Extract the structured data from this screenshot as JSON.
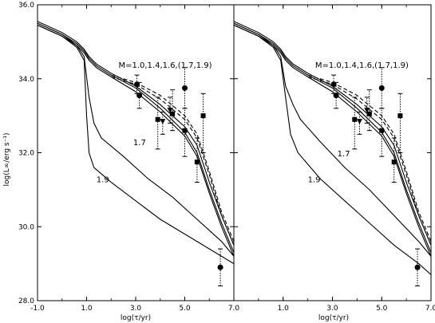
{
  "chart_data": [
    {
      "panel": "left",
      "type": "line",
      "xlabel": "log(τ/yr)",
      "ylabel": "log(L∞/erg s⁻¹)",
      "xlim": [
        -1.0,
        7.0
      ],
      "ylim": [
        28.0,
        36.0
      ],
      "xticks": [
        "-1.0",
        "1.0",
        "3.0",
        "5.0",
        "7.0"
      ],
      "yticks": [
        "28.0",
        "30.0",
        "32.0",
        "34.0",
        "36.0"
      ],
      "annotations": [
        {
          "text": "M=1.0,1.4,1.6,(1.7,1.9)",
          "x": 2.3,
          "y": 34.3
        },
        {
          "text": "1.7",
          "x": 2.9,
          "y": 32.2
        },
        {
          "text": "1.9",
          "x": 1.4,
          "y": 31.2
        }
      ],
      "series": [
        {
          "values": [
            [
              -1.0,
              35.55
            ],
            [
              0.0,
              35.25
            ],
            [
              0.6,
              35.0
            ],
            [
              0.9,
              34.8
            ],
            [
              1.1,
              34.6
            ],
            [
              1.4,
              34.4
            ],
            [
              2.0,
              34.15
            ],
            [
              3.0,
              33.8
            ],
            [
              4.0,
              33.3
            ],
            [
              5.0,
              32.7
            ],
            [
              5.5,
              32.2
            ],
            [
              6.0,
              31.2
            ],
            [
              6.5,
              30.3
            ],
            [
              7.0,
              29.5
            ]
          ],
          "style": "solid"
        },
        {
          "values": [
            [
              -1.0,
              35.5
            ],
            [
              0.0,
              35.2
            ],
            [
              0.6,
              34.95
            ],
            [
              0.9,
              34.75
            ],
            [
              1.1,
              34.55
            ],
            [
              1.4,
              34.35
            ],
            [
              2.0,
              34.1
            ],
            [
              3.0,
              33.75
            ],
            [
              4.0,
              33.2
            ],
            [
              5.0,
              32.55
            ],
            [
              5.5,
              32.0
            ],
            [
              6.0,
              31.0
            ],
            [
              6.5,
              30.1
            ],
            [
              7.0,
              29.3
            ]
          ],
          "style": "solid"
        },
        {
          "values": [
            [
              -1.0,
              35.45
            ],
            [
              0.0,
              35.15
            ],
            [
              0.6,
              34.9
            ],
            [
              0.9,
              34.7
            ],
            [
              1.1,
              34.5
            ],
            [
              1.4,
              34.3
            ],
            [
              2.0,
              34.05
            ],
            [
              3.0,
              33.65
            ],
            [
              4.0,
              33.1
            ],
            [
              5.0,
              32.45
            ],
            [
              5.5,
              31.9
            ],
            [
              6.0,
              30.9
            ],
            [
              6.5,
              30.0
            ],
            [
              7.0,
              29.2
            ]
          ],
          "style": "solid"
        },
        {
          "values": [
            [
              2.0,
              34.1
            ],
            [
              3.0,
              33.9
            ],
            [
              4.0,
              33.55
            ],
            [
              5.0,
              33.0
            ],
            [
              5.5,
              32.5
            ],
            [
              6.0,
              31.5
            ],
            [
              6.5,
              30.4
            ],
            [
              7.0,
              29.6
            ]
          ],
          "style": "dashed"
        },
        {
          "values": [
            [
              2.0,
              34.05
            ],
            [
              3.0,
              33.85
            ],
            [
              4.0,
              33.45
            ],
            [
              5.0,
              32.9
            ],
            [
              5.5,
              32.4
            ],
            [
              6.0,
              31.4
            ],
            [
              6.5,
              30.3
            ],
            [
              7.0,
              29.5
            ]
          ],
          "style": "dashed"
        },
        {
          "values": [
            [
              -1.0,
              35.5
            ],
            [
              0.0,
              35.2
            ],
            [
              0.6,
              34.9
            ],
            [
              0.9,
              34.6
            ],
            [
              1.1,
              33.5
            ],
            [
              1.3,
              32.8
            ],
            [
              1.6,
              32.4
            ],
            [
              2.5,
              31.9
            ],
            [
              3.5,
              31.3
            ],
            [
              4.5,
              30.8
            ],
            [
              5.5,
              30.2
            ],
            [
              6.5,
              29.6
            ],
            [
              7.0,
              29.2
            ]
          ],
          "style": "solid",
          "name": "1.7"
        },
        {
          "values": [
            [
              -1.0,
              35.45
            ],
            [
              0.0,
              35.15
            ],
            [
              0.6,
              34.85
            ],
            [
              0.9,
              34.5
            ],
            [
              1.0,
              33.0
            ],
            [
              1.1,
              32.0
            ],
            [
              1.3,
              31.6
            ],
            [
              2.0,
              31.2
            ],
            [
              3.0,
              30.7
            ],
            [
              4.0,
              30.2
            ],
            [
              5.0,
              29.8
            ],
            [
              6.0,
              29.4
            ],
            [
              7.0,
              29.0
            ]
          ],
          "style": "solid",
          "name": "1.9"
        }
      ],
      "observations": [
        {
          "marker": "circle",
          "x": 3.05,
          "y": 33.85,
          "yerr": [
            33.6,
            34.1
          ]
        },
        {
          "marker": "circle",
          "x": 3.15,
          "y": 33.55,
          "yerr": [
            33.2,
            33.9
          ]
        },
        {
          "marker": "square",
          "x": 3.9,
          "y": 32.9,
          "yerr": [
            32.1,
            33.5
          ]
        },
        {
          "marker": "triangle-down",
          "x": 4.1,
          "y": 32.85,
          "yerr": [
            32.5,
            33.1
          ]
        },
        {
          "marker": "triangle-down",
          "x": 4.4,
          "y": 33.15,
          "yerr": [
            32.8,
            33.5
          ]
        },
        {
          "marker": "square",
          "x": 4.5,
          "y": 33.05,
          "yerr": [
            32.6,
            33.7
          ]
        },
        {
          "marker": "circle",
          "x": 5.0,
          "y": 33.75,
          "yerr": [
            33.2,
            34.3
          ]
        },
        {
          "marker": "square",
          "x": 5.0,
          "y": 32.6,
          "yerr": [
            31.9,
            33.2
          ]
        },
        {
          "marker": "square",
          "x": 5.5,
          "y": 31.75,
          "yerr": [
            31.2,
            32.4
          ]
        },
        {
          "marker": "square",
          "x": 5.75,
          "y": 33.0,
          "yerr": [
            32.0,
            33.6
          ]
        },
        {
          "marker": "circle",
          "x": 6.45,
          "y": 28.9,
          "yerr": [
            28.4,
            29.4
          ]
        }
      ]
    },
    {
      "panel": "right",
      "type": "line",
      "xlabel": "log(τ/yr)",
      "ylabel": "",
      "xlim": [
        -1.0,
        7.0
      ],
      "ylim": [
        28.0,
        36.0
      ],
      "xticks": [
        "1.0",
        "3.0",
        "5.0",
        "7.0"
      ],
      "yticks": [],
      "annotations": [
        {
          "text": "M=1.0,1.4,1.6,(1.7,1.9)",
          "x": 2.3,
          "y": 34.3
        },
        {
          "text": "1.7",
          "x": 3.2,
          "y": 31.9
        },
        {
          "text": "1.9",
          "x": 2.0,
          "y": 31.2
        }
      ],
      "series": [
        {
          "values": [
            [
              -1.0,
              35.55
            ],
            [
              0.0,
              35.25
            ],
            [
              0.6,
              35.0
            ],
            [
              0.9,
              34.8
            ],
            [
              1.1,
              34.6
            ],
            [
              1.4,
              34.4
            ],
            [
              2.0,
              34.15
            ],
            [
              3.0,
              33.8
            ],
            [
              4.0,
              33.3
            ],
            [
              5.0,
              32.7
            ],
            [
              5.5,
              32.2
            ],
            [
              6.0,
              31.2
            ],
            [
              6.5,
              30.3
            ],
            [
              7.0,
              29.5
            ]
          ],
          "style": "solid"
        },
        {
          "values": [
            [
              -1.0,
              35.5
            ],
            [
              0.0,
              35.2
            ],
            [
              0.6,
              34.95
            ],
            [
              0.9,
              34.75
            ],
            [
              1.1,
              34.55
            ],
            [
              1.4,
              34.35
            ],
            [
              2.0,
              34.1
            ],
            [
              3.0,
              33.75
            ],
            [
              4.0,
              33.2
            ],
            [
              5.0,
              32.55
            ],
            [
              5.5,
              32.0
            ],
            [
              6.0,
              31.0
            ],
            [
              6.5,
              30.1
            ],
            [
              7.0,
              29.3
            ]
          ],
          "style": "solid"
        },
        {
          "values": [
            [
              -1.0,
              35.45
            ],
            [
              0.0,
              35.15
            ],
            [
              0.6,
              34.9
            ],
            [
              0.9,
              34.7
            ],
            [
              1.1,
              34.5
            ],
            [
              1.4,
              34.3
            ],
            [
              2.0,
              34.05
            ],
            [
              3.0,
              33.65
            ],
            [
              4.0,
              33.1
            ],
            [
              5.0,
              32.45
            ],
            [
              5.5,
              31.9
            ],
            [
              6.0,
              30.9
            ],
            [
              6.5,
              30.0
            ],
            [
              7.0,
              29.2
            ]
          ],
          "style": "solid"
        },
        {
          "values": [
            [
              2.0,
              34.1
            ],
            [
              3.0,
              33.9
            ],
            [
              4.0,
              33.55
            ],
            [
              5.0,
              33.0
            ],
            [
              5.5,
              32.5
            ],
            [
              6.0,
              31.5
            ],
            [
              6.5,
              30.4
            ],
            [
              7.0,
              29.6
            ]
          ],
          "style": "dashed"
        },
        {
          "values": [
            [
              2.0,
              34.05
            ],
            [
              3.0,
              33.85
            ],
            [
              4.0,
              33.45
            ],
            [
              5.0,
              32.9
            ],
            [
              5.5,
              32.4
            ],
            [
              6.0,
              31.4
            ],
            [
              6.5,
              30.3
            ],
            [
              7.0,
              29.5
            ]
          ],
          "style": "dashed"
        },
        {
          "values": [
            [
              -1.0,
              35.5
            ],
            [
              0.0,
              35.2
            ],
            [
              0.6,
              34.9
            ],
            [
              0.9,
              34.6
            ],
            [
              1.1,
              33.8
            ],
            [
              1.4,
              33.3
            ],
            [
              1.7,
              32.9
            ],
            [
              2.5,
              32.3
            ],
            [
              3.5,
              31.6
            ],
            [
              4.5,
              31.0
            ],
            [
              5.5,
              30.3
            ],
            [
              6.5,
              29.6
            ],
            [
              7.0,
              29.2
            ]
          ],
          "style": "solid",
          "name": "1.7"
        },
        {
          "values": [
            [
              -1.0,
              35.45
            ],
            [
              0.0,
              35.15
            ],
            [
              0.6,
              34.85
            ],
            [
              0.9,
              34.5
            ],
            [
              1.1,
              33.5
            ],
            [
              1.3,
              32.5
            ],
            [
              1.6,
              32.0
            ],
            [
              2.5,
              31.3
            ],
            [
              3.5,
              30.7
            ],
            [
              4.5,
              30.1
            ],
            [
              5.5,
              29.5
            ],
            [
              6.5,
              29.0
            ],
            [
              7.0,
              28.7
            ]
          ],
          "style": "solid",
          "name": "1.9"
        }
      ],
      "observations": [
        {
          "marker": "circle",
          "x": 3.05,
          "y": 33.85,
          "yerr": [
            33.6,
            34.1
          ]
        },
        {
          "marker": "circle",
          "x": 3.15,
          "y": 33.55,
          "yerr": [
            33.2,
            33.9
          ]
        },
        {
          "marker": "square",
          "x": 3.9,
          "y": 32.9,
          "yerr": [
            32.1,
            33.5
          ]
        },
        {
          "marker": "triangle-down",
          "x": 4.1,
          "y": 32.85,
          "yerr": [
            32.5,
            33.1
          ]
        },
        {
          "marker": "triangle-down",
          "x": 4.4,
          "y": 33.15,
          "yerr": [
            32.8,
            33.5
          ]
        },
        {
          "marker": "square",
          "x": 4.5,
          "y": 33.05,
          "yerr": [
            32.6,
            33.7
          ]
        },
        {
          "marker": "circle",
          "x": 5.0,
          "y": 33.75,
          "yerr": [
            33.2,
            34.3
          ]
        },
        {
          "marker": "square",
          "x": 5.0,
          "y": 32.6,
          "yerr": [
            31.9,
            33.2
          ]
        },
        {
          "marker": "square",
          "x": 5.5,
          "y": 31.75,
          "yerr": [
            31.2,
            32.4
          ]
        },
        {
          "marker": "square",
          "x": 5.75,
          "y": 33.0,
          "yerr": [
            32.0,
            33.6
          ]
        },
        {
          "marker": "circle",
          "x": 6.45,
          "y": 28.9,
          "yerr": [
            28.4,
            29.4
          ]
        }
      ]
    }
  ]
}
